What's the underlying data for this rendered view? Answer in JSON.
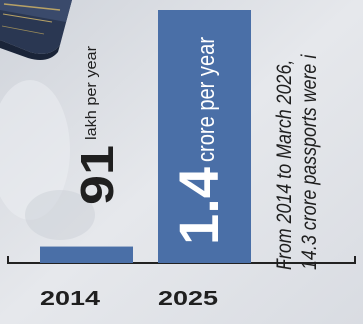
{
  "chart_data": {
    "type": "bar",
    "categories": [
      "2014",
      "2025"
    ],
    "series": [
      {
        "values": [
          0.91,
          14
        ],
        "labels": [
          {
            "number": "91",
            "unit": "lakh per year"
          },
          {
            "number": "1.4",
            "unit": "crore per year"
          }
        ],
        "color": "#4a6fa7"
      }
    ],
    "ylim": [
      0,
      14
    ],
    "grid": false,
    "annotation": [
      "From 2014 to March 2026,",
      "14.3 crore passports were i"
    ]
  },
  "colors": {
    "bar": "#4a6fa7",
    "text": "#1f1f1f",
    "label_on_bar": "#ffffff"
  },
  "icons": [
    "passport-image"
  ]
}
